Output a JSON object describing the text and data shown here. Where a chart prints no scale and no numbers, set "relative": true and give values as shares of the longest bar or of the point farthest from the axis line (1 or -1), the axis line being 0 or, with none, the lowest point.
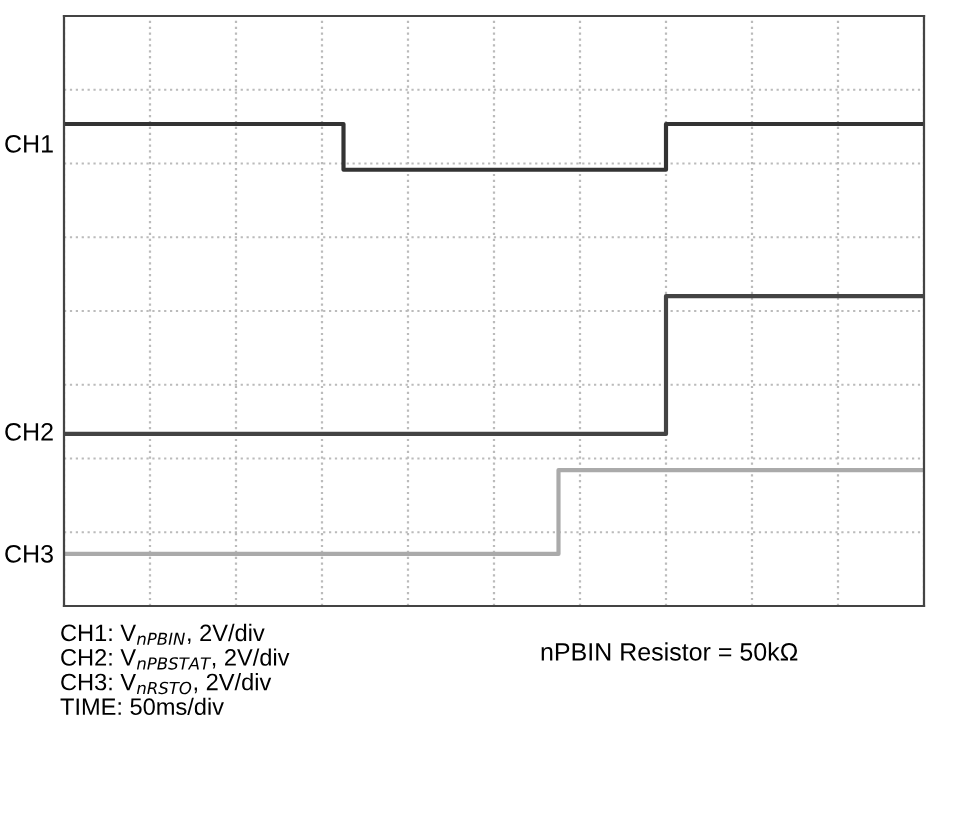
{
  "chart_data": {
    "type": "step",
    "relative": true,
    "grid": true,
    "categories": [
      null,
      null,
      null,
      null,
      null,
      null,
      null,
      null,
      null,
      null,
      null,
      null,
      null,
      null,
      null,
      null,
      null,
      null,
      null,
      null,
      null,
      null,
      null,
      null,
      null,
      null,
      null,
      null,
      null,
      null,
      null,
      null,
      null,
      null,
      null,
      null,
      null,
      null,
      null,
      null,
      null
    ],
    "series": [
      {
        "color": "#333333",
        "values": [
          1,
          1,
          1,
          1,
          1,
          1,
          1,
          1,
          1,
          1,
          1,
          1,
          1,
          0.905,
          0.905,
          0.905,
          0.905,
          0.905,
          0.905,
          0.905,
          0.905,
          0.905,
          0.905,
          0.905,
          0.905,
          0.905,
          0.905,
          0.905,
          1,
          1,
          1,
          1,
          1,
          1,
          1,
          1,
          1,
          1,
          1,
          1,
          1
        ]
      },
      {
        "color": "#444444",
        "values": [
          0.357,
          0.357,
          0.357,
          0.357,
          0.357,
          0.357,
          0.357,
          0.357,
          0.357,
          0.357,
          0.357,
          0.357,
          0.357,
          0.357,
          0.357,
          0.357,
          0.357,
          0.357,
          0.357,
          0.357,
          0.357,
          0.357,
          0.357,
          0.357,
          0.357,
          0.357,
          0.357,
          0.357,
          0.643,
          0.643,
          0.643,
          0.643,
          0.643,
          0.643,
          0.643,
          0.643,
          0.643,
          0.643,
          0.643,
          0.643,
          0.643
        ]
      },
      {
        "color": "#aaaaaa",
        "values": [
          0.108,
          0.108,
          0.108,
          0.108,
          0.108,
          0.108,
          0.108,
          0.108,
          0.108,
          0.108,
          0.108,
          0.108,
          0.108,
          0.108,
          0.108,
          0.108,
          0.108,
          0.108,
          0.108,
          0.108,
          0.108,
          0.108,
          0.108,
          0.282,
          0.282,
          0.282,
          0.282,
          0.282,
          0.282,
          0.282,
          0.282,
          0.282,
          0.282,
          0.282,
          0.282,
          0.282,
          0.282,
          0.282,
          0.282,
          0.282,
          0.282
        ]
      }
    ],
    "annotations": [
      "CH1",
      "CH2",
      "CH3",
      "CH1: V$_{nPBIN}$, 2V/div\nCH2: V$_{nPBSTAT}$, 2V/div\nCH3: V$_{nRSTO}$, 2V/div\nTIME: 50ms/div",
      "nPBIN Resistor = 50kΩ"
    ]
  }
}
